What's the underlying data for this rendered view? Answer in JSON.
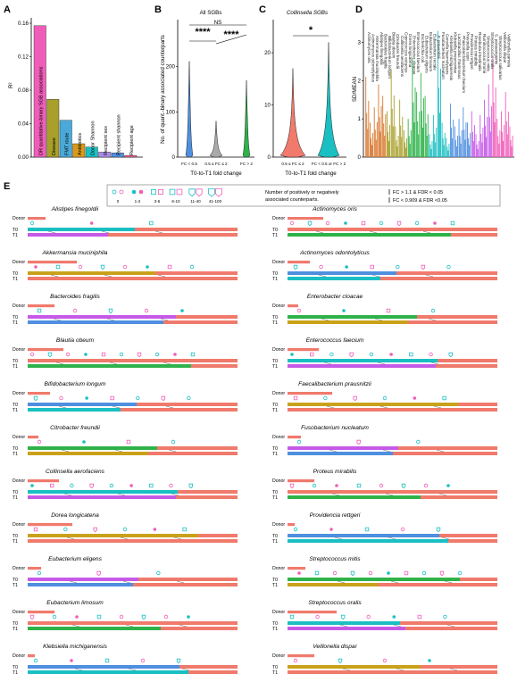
{
  "colors": {
    "pink": "#f05db9",
    "olive": "#a8a02a",
    "orange": "#d99a1a",
    "teal": "#1abfc2",
    "purple": "#a98be8",
    "blue": "#4f8fe0",
    "magenta": "#ff5d95",
    "salmon": "#f07a6c",
    "green": "#2fb24a",
    "violet": "#c65ae8",
    "gold": "#c9a21a",
    "wheat": "#e0b96a",
    "donor_bar": "#f07a6c",
    "t0_bar": "#1abfc2",
    "t1_bar": "#1abfc2"
  },
  "panels": {
    "a": "A",
    "b": "B",
    "c": "C",
    "d": "D",
    "e": "E"
  },
  "chart_data": [
    {
      "panel": "A",
      "type": "bar",
      "ylabel": "R²",
      "ylim": [
        0,
        0.16
      ],
      "yticks": [
        "0.00",
        "0.04",
        "0.08",
        "0.12",
        "0.16"
      ],
      "categories": [
        "DR quantitative-binary SGB associations",
        "Disease",
        "FMT route",
        "Antibiotics",
        "Donor Shannon",
        "Recipient sex",
        "Recipient shannon",
        "Recipient age"
      ],
      "values": [
        0.157,
        0.069,
        0.044,
        0.016,
        0.012,
        0.006,
        0.005,
        0.002
      ],
      "bar_colors": [
        "#f05db9",
        "#a8a02a",
        "#4aa9d8",
        "#d99a1a",
        "#1abfc2",
        "#a98be8",
        "#4f8fe0",
        "#ff5d95"
      ]
    },
    {
      "panel": "B",
      "type": "violin",
      "title": "All SGBs",
      "ylabel": "No. of quant.-binary associated counterparts",
      "xlabel": "T0-to-T1 fold change",
      "ylim": [
        0,
        300
      ],
      "yticks": [
        "0",
        "100",
        "200"
      ],
      "categories": [
        "FC < 0.5",
        "0.5 ≤ FC ≤ 2",
        "FC > 2"
      ],
      "max_values": [
        212,
        80,
        170
      ],
      "violin_colors": [
        "#4f8fe0",
        "#aaaaaa",
        "#2fb24a"
      ],
      "comparisons": [
        {
          "pair": [
            0,
            2
          ],
          "label": "NS"
        },
        {
          "pair": [
            0,
            1
          ],
          "label": "****"
        },
        {
          "pair": [
            1,
            2
          ],
          "label": "****"
        }
      ]
    },
    {
      "panel": "C",
      "type": "violin",
      "title": "Collinsella SGBs",
      "xlabel": "T0-to-T1 fold change",
      "yticks": [
        "0",
        "10",
        "20"
      ],
      "ylim": [
        0,
        26
      ],
      "categories": [
        "0.5 ≤ FC ≤ 2",
        "FC < 0.5 or FC > 2"
      ],
      "max_values": [
        17,
        22
      ],
      "violin_colors": [
        "#f07a6c",
        "#1abfc2"
      ],
      "comparisons": [
        {
          "pair": [
            0,
            1
          ],
          "label": "*"
        }
      ]
    },
    {
      "panel": "D",
      "type": "bar",
      "ylabel": "SD/MEAN",
      "ylim": [
        0,
        3.5
      ],
      "yticks": [
        "0",
        "1",
        "2",
        "3"
      ],
      "categories": [
        "Actinomyces oris",
        "Actinomyces odontolyticus",
        "Akkermansia muciniphila",
        "Alistipes finegoldii",
        "Bacteroides fragilis",
        "Bifidobacterium longum",
        "Blautia obeum",
        "Citrobacter freundii",
        "Collinsella aerofaciens",
        "Coprococcus eutactus",
        "Dorea longicatena",
        "Enterobacter cloacae",
        "Enterococcus faecium",
        "Escherichia coli",
        "Eubacterium eligens",
        "Eubacterium limosum",
        "Eubacterium rectale",
        "F. prausnitzii",
        "Fusobacterium nucleatum",
        "Gemella haemolysans",
        "Klebsiella michiganensis",
        "Klebsiella pneumoniae",
        "Lactobacillus rhamnosus",
        "Phascolarctobacterium faecium",
        "Prevotella copri",
        "Providencia rettgeri",
        "Proteus mirabilis",
        "Roseburia intestinalis",
        "Ruminococcus bromii",
        "Streptococcus mitis",
        "Streptococcus oralis",
        "Streptococcus parasanguinis",
        "Streptococcus salivarius",
        "Veillonella dispar",
        "Veillonella parvula"
      ],
      "values": [
        2.1,
        0.9,
        1.3,
        1.9,
        1.6,
        1.2,
        2.3,
        0.8,
        1.5,
        0.7,
        1.0,
        2.6,
        1.7,
        2.2,
        1.6,
        0.6,
        1.1,
        3.3,
        0.9,
        0.5,
        1.4,
        0.8,
        1.0,
        1.3,
        0.9,
        1.2,
        0.6,
        1.1,
        1.5,
        1.9,
        2.6,
        1.0,
        1.2,
        1.7,
        0.8
      ]
    }
  ],
  "panel_d_labels": [
    "Actinomyces oris",
    "Actinomyces odontolyticus",
    "Akkermansia muciniphila",
    "Alistipes finegoldii",
    "Bacteroides fragilis",
    "Bifidobacterium longum",
    "Blautia obeum",
    "Citrobacter freundii",
    "Collinsella aerofaciens",
    "Coprococcus eutactus",
    "Dorea longicatena",
    "Enterobacter cloacae",
    "Enterococcus faecium",
    "Escherichia coli",
    "Eubacterium eligens",
    "Eubacterium limosum",
    "Eubacterium rectale",
    "F. prausnitzii",
    "Fusobacterium nucleatum",
    "Gemella haemolysans",
    "Klebsiella michiganensis",
    "Klebsiella pneumoniae",
    "Lactobacillus rhamnosus",
    "Phascolarctobacterium faecium",
    "Prevotella copri",
    "Providencia rettgeri",
    "Proteus mirabilis",
    "Roseburia intestinalis",
    "Ruminococcus bromii",
    "Streptococcus mitis",
    "Streptococcus oralis",
    "S. parasanguinis",
    "Streptococcus salivarius",
    "Veillonella dispar",
    "Veillonella parvula"
  ],
  "legend_e": {
    "sizes": [
      "0",
      "1-2",
      "3-5",
      "6-10",
      "11-40",
      "41-100"
    ],
    "text1": "Number of positively or negatively",
    "text2": "associated counterparts.",
    "fc_up": "FC > 1.1 & FDR < 0.05",
    "fc_down": "FC < 0.909 & FDR <0.05"
  },
  "row_labels": {
    "donor": "Donor",
    "t0": "T0",
    "t1": "T1"
  },
  "species_left": [
    "Alistipes finegoldii",
    "Akkermansia muciniphila",
    "Bacteroides fragilis",
    "Blautia obeum",
    "Bifidobacterium longum",
    "Citrobacter freundii",
    "Collinsella aerofaciens",
    "Dorea longicatena",
    "Eubacterium eligens",
    "Eubacterium limosum",
    "Klebsiella michiganensis"
  ],
  "species_right": [
    "Actinomyces oris",
    "Actinomyces odontolyticus",
    "Enterobacter cloacae",
    "Enterococcus faecium",
    "Faecalibacterium prausnitzii",
    "Fusobacterium nucleatum",
    "Proteus mirabilis",
    "Providencia rettgeri",
    "Streptococcus mitis",
    "Streptococcus oralis",
    "Veillonella dispar"
  ]
}
